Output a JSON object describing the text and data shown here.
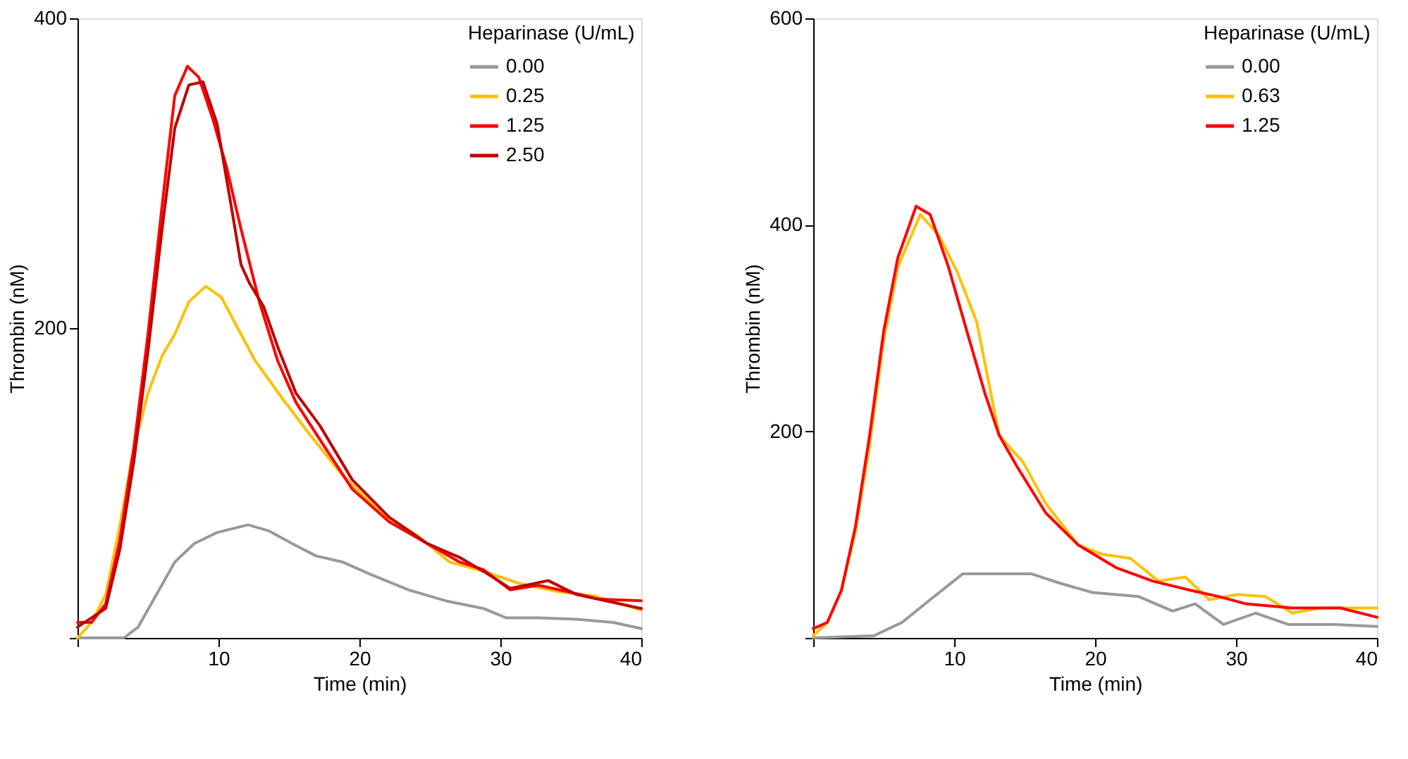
{
  "chart_data": [
    {
      "type": "line",
      "xlabel": "Time (min)",
      "ylabel": "Thrombin (nM)",
      "legend_title": "Heparinase (U/mL)",
      "legend": "top right",
      "grid": false,
      "marker": "none",
      "line_style": "solid",
      "xlim": [
        0,
        40
      ],
      "xticks": [
        {
          "value": 0,
          "label": null
        },
        10,
        20,
        30,
        40
      ],
      "ylim": [
        0,
        400
      ],
      "yticks": [
        {
          "value": 0,
          "label": null
        },
        200,
        400
      ],
      "series": [
        {
          "name": "0.00",
          "color": "#999999",
          "x": [
            0,
            3.3,
            4.3,
            5.6,
            6.9,
            8.3,
            9.9,
            12.1,
            13.6,
            15.2,
            16.9,
            18.8,
            20.8,
            23.5,
            26.1,
            28.8,
            30.4,
            32.7,
            35.4,
            38.0,
            40
          ],
          "values": [
            0,
            0,
            7,
            28,
            49,
            61,
            68,
            73,
            69,
            61,
            53,
            49,
            41,
            31,
            24,
            19,
            13,
            13,
            12,
            10,
            6
          ]
        },
        {
          "name": "0.25",
          "color": "#ffc000",
          "x": [
            0,
            1.0,
            2.0,
            3.0,
            4.0,
            5.0,
            6.0,
            6.9,
            7.9,
            9.1,
            10.2,
            11.6,
            12.6,
            14.5,
            16.5,
            18.8,
            21.5,
            24.1,
            26.4,
            28.8,
            31.4,
            34.0,
            36.7,
            40
          ],
          "values": [
            0,
            10,
            28,
            72,
            123,
            158,
            182,
            196,
            217,
            227,
            220,
            196,
            179,
            155,
            131,
            105,
            81,
            66,
            49,
            43,
            35,
            30,
            27,
            18
          ]
        },
        {
          "name": "1.25",
          "color": "#ff0000",
          "x": [
            0,
            1.0,
            2.0,
            3.0,
            4.0,
            5.0,
            6.0,
            6.9,
            7.8,
            8.6,
            9.6,
            10.6,
            11.6,
            12.9,
            14.2,
            15.5,
            17.2,
            19.5,
            22.1,
            24.8,
            27.1,
            28.8,
            30.7,
            32.7,
            34.7,
            37.0,
            40
          ],
          "values": [
            10,
            10,
            22,
            63,
            123,
            196,
            279,
            350,
            369,
            362,
            335,
            303,
            264,
            217,
            179,
            152,
            128,
            96,
            75,
            61,
            49,
            44,
            31,
            34,
            30,
            25,
            24
          ]
        },
        {
          "name": "2.50",
          "color": "#c00000",
          "x": [
            0,
            2.0,
            3.0,
            4.0,
            5.0,
            6.0,
            6.9,
            7.9,
            8.9,
            9.9,
            10.9,
            11.6,
            12.2,
            13.2,
            14.2,
            15.5,
            17.2,
            19.5,
            22.1,
            24.8,
            27.1,
            28.8,
            30.7,
            33.4,
            35.4,
            40
          ],
          "values": [
            7,
            19,
            57,
            114,
            185,
            264,
            329,
            357,
            359,
            332,
            279,
            241,
            229,
            214,
            188,
            158,
            137,
            102,
            78,
            61,
            52,
            43,
            32,
            37,
            28,
            19
          ]
        }
      ]
    },
    {
      "type": "line",
      "xlabel": "Time (min)",
      "ylabel": "Thrombin (nM)",
      "legend_title": "Heparinase (U/mL)",
      "legend": "top right",
      "grid": false,
      "marker": "none",
      "line_style": "solid",
      "xlim": [
        0,
        40
      ],
      "xticks": [
        {
          "value": 0,
          "label": null
        },
        10,
        20,
        30,
        40
      ],
      "ylim": [
        0,
        600
      ],
      "yticks": [
        {
          "value": 0,
          "label": null
        },
        200,
        400,
        600
      ],
      "series": [
        {
          "name": "0.00",
          "color": "#999999",
          "x": [
            0,
            4.3,
            6.3,
            8.3,
            10.6,
            15.5,
            17.5,
            19.8,
            23.1,
            25.5,
            27.1,
            29.1,
            31.4,
            33.7,
            37.0,
            40
          ],
          "values": [
            0,
            2,
            15,
            37,
            62,
            62,
            53,
            44,
            40,
            26,
            33,
            13,
            24,
            13,
            13,
            11
          ]
        },
        {
          "name": "0.63",
          "color": "#ffc000",
          "x": [
            0,
            1.0,
            2.0,
            3.0,
            4.0,
            5.0,
            6.0,
            7.6,
            8.9,
            10.2,
            11.6,
            13.2,
            14.9,
            16.5,
            18.8,
            20.5,
            22.5,
            24.5,
            26.4,
            28.1,
            30.1,
            32.1,
            34.0,
            36.0,
            40
          ],
          "values": [
            2,
            15,
            46,
            104,
            187,
            289,
            359,
            410,
            390,
            355,
            306,
            196,
            170,
            130,
            90,
            81,
            77,
            55,
            59,
            37,
            42,
            40,
            24,
            29,
            29
          ]
        },
        {
          "name": "1.25",
          "color": "#ff0000",
          "x": [
            0,
            1.0,
            2.0,
            3.0,
            4.0,
            5.0,
            6.0,
            7.3,
            8.3,
            9.6,
            10.9,
            12.2,
            13.2,
            14.5,
            16.5,
            18.8,
            21.5,
            24.1,
            26.8,
            28.8,
            30.7,
            34.0,
            37.4,
            40
          ],
          "values": [
            9,
            15,
            46,
            108,
            196,
            297,
            368,
            418,
            410,
            359,
            297,
            236,
            196,
            165,
            121,
            90,
            68,
            55,
            46,
            40,
            33,
            29,
            29,
            20
          ]
        }
      ]
    }
  ]
}
